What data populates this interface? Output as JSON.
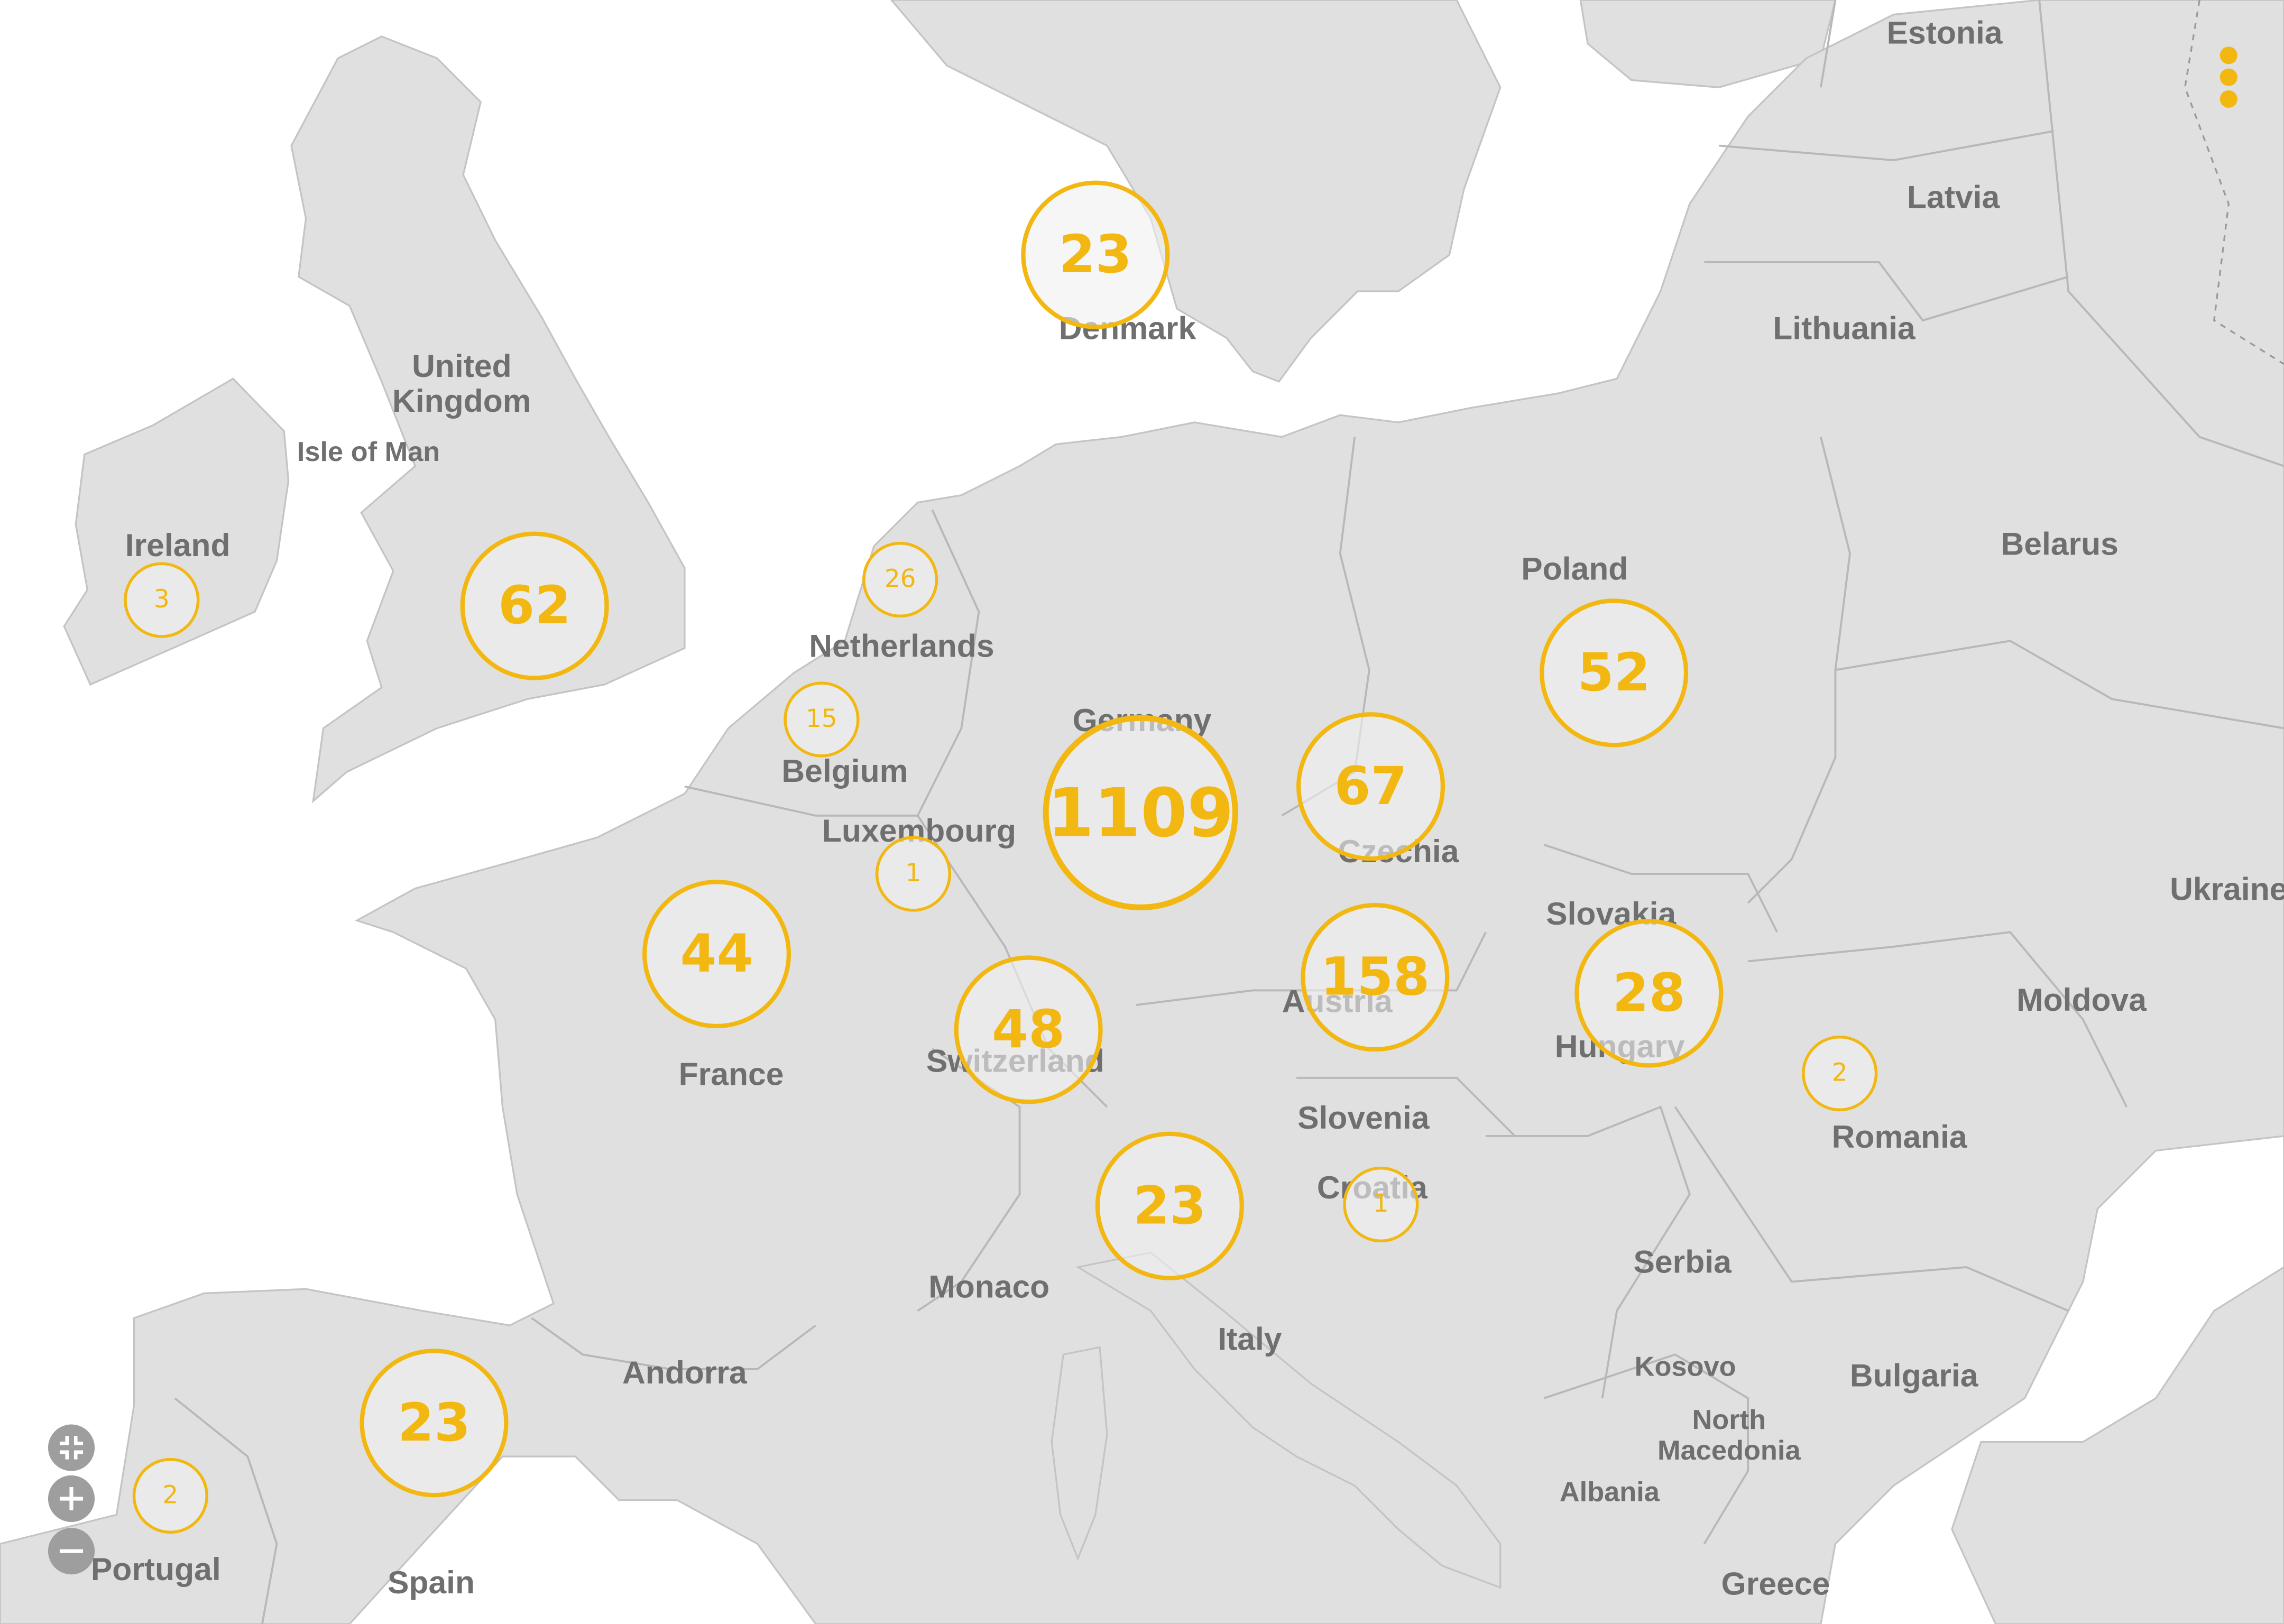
{
  "map": {
    "accent_color": "#f2b711",
    "land_color": "#e0e0e0",
    "sea_color": "#ffffff",
    "label_color": "#6f6f6f"
  },
  "countries": {
    "estonia": "Estonia",
    "latvia": "Latvia",
    "lithuania": "Lithuania",
    "belarus": "Belarus",
    "ukraine": "Ukraine",
    "moldova": "Moldova",
    "romania": "Romania",
    "bulgaria": "Bulgaria",
    "serbia": "Serbia",
    "kosovo": "Kosovo",
    "north_macedonia": "North\nMacedonia",
    "albania": "Albania",
    "greece": "Greece",
    "poland": "Poland",
    "denmark": "Denmark",
    "united_kingdom": "United\nKingdom",
    "isle_of_man": "Isle of Man",
    "ireland": "Ireland",
    "netherlands": "Netherlands",
    "belgium": "Belgium",
    "luxembourg": "Luxembourg",
    "germany": "Germany",
    "czechia": "Czechia",
    "slovakia": "Slovakia",
    "austria": "Austria",
    "hungary": "Hungary",
    "slovenia": "Slovenia",
    "croatia": "Croatia",
    "switzerland": "Switzerland",
    "france": "France",
    "monaco": "Monaco",
    "italy": "Italy",
    "andorra": "Andorra",
    "spain": "Spain",
    "portugal": "Portugal"
  },
  "clusters": {
    "denmark": "23",
    "ireland": "3",
    "uk": "62",
    "netherlands": "26",
    "belgium": "15",
    "luxembourg": "1",
    "germany": "1109",
    "czechia": "67",
    "poland": "52",
    "austria": "158",
    "hungary": "28",
    "romania": "2",
    "france": "44",
    "switzerland": "48",
    "italy": "23",
    "croatia": "1",
    "spain": "23",
    "portugal": "2"
  },
  "controls": {
    "fit_icon": "fit-bounds-icon",
    "zoom_in_icon": "plus-icon",
    "zoom_out_icon": "minus-icon",
    "menu_icon": "more-vertical-icon"
  }
}
